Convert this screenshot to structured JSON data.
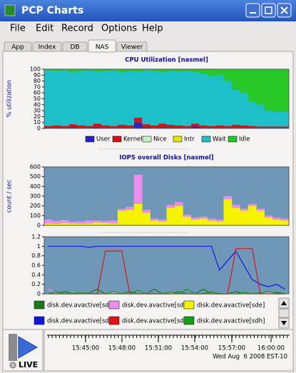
{
  "window": {
    "title": "PCP Charts"
  },
  "menu": [
    "File",
    "Edit",
    "Record",
    "Options",
    "Help"
  ],
  "tabs": [
    "App",
    "Index",
    "DB",
    "NAS",
    "Viewer"
  ],
  "active_tab": 3,
  "charts": [
    {
      "type": "bar",
      "stacked": true,
      "title": "CPU Utilization [nasmel]",
      "ylabel": "% utilization",
      "ylim": [
        0,
        100
      ],
      "yticks": [
        0,
        10,
        20,
        30,
        40,
        50,
        60,
        70,
        80,
        90,
        100
      ],
      "legend": true,
      "series": [
        {
          "name": "User",
          "color": "#2424c8",
          "values": [
            1,
            1,
            1,
            2,
            1,
            1,
            2,
            1,
            1,
            1,
            1,
            10,
            2,
            1,
            2,
            1,
            1,
            1,
            3,
            1,
            1,
            1,
            1,
            1,
            1,
            1,
            1,
            1,
            1,
            1
          ]
        },
        {
          "name": "Kernel",
          "color": "#d41414",
          "values": [
            3,
            4,
            3,
            5,
            4,
            3,
            6,
            4,
            3,
            5,
            4,
            8,
            5,
            4,
            6,
            5,
            4,
            3,
            5,
            4,
            3,
            4,
            3,
            5,
            4,
            3,
            2,
            2,
            2,
            2
          ]
        },
        {
          "name": "Nice",
          "color": "#c4f0c4",
          "values": [
            0,
            0,
            0,
            0,
            0,
            0,
            0,
            0,
            0,
            0,
            0,
            0,
            0,
            0,
            0,
            0,
            0,
            0,
            0,
            0,
            0,
            0,
            0,
            0,
            0,
            0,
            0,
            0,
            0,
            0
          ]
        },
        {
          "name": "Intr",
          "color": "#e4e400",
          "values": [
            0,
            0,
            0,
            0,
            0,
            0,
            0,
            0,
            0,
            0,
            0,
            0,
            0,
            0,
            0,
            0,
            0,
            0,
            0,
            0,
            0,
            0,
            0,
            0,
            0,
            0,
            0,
            0,
            0,
            0
          ]
        },
        {
          "name": "Wait",
          "color": "#1cc0c8",
          "values": [
            94,
            92,
            94,
            88,
            92,
            94,
            88,
            92,
            94,
            89,
            92,
            78,
            91,
            92,
            87,
            91,
            91,
            93,
            87,
            87,
            84,
            85,
            76,
            59,
            55,
            41,
            37,
            27,
            25,
            25
          ]
        },
        {
          "name": "Idle",
          "color": "#28c828",
          "values": [
            2,
            3,
            2,
            5,
            3,
            2,
            4,
            3,
            2,
            5,
            3,
            4,
            2,
            3,
            5,
            3,
            4,
            3,
            5,
            8,
            12,
            10,
            20,
            35,
            40,
            55,
            60,
            70,
            72,
            72
          ]
        }
      ]
    },
    {
      "type": "bar",
      "stacked": true,
      "title": "IOPS overall Disks [nasmel]",
      "ylabel": "count / sec",
      "ylim": [
        0,
        600
      ],
      "yticks": [
        0,
        100,
        200,
        300,
        400,
        500,
        600
      ],
      "series": [
        {
          "color": "#f4f400",
          "values": [
            20,
            15,
            25,
            20,
            15,
            20,
            30,
            25,
            20,
            150,
            160,
            220,
            130,
            50,
            40,
            180,
            200,
            90,
            60,
            70,
            50,
            40,
            270,
            180,
            150,
            200,
            150,
            80,
            60,
            50
          ]
        },
        {
          "color": "#ec8cec",
          "values": [
            40,
            30,
            30,
            20,
            25,
            30,
            20,
            20,
            30,
            20,
            30,
            300,
            30,
            20,
            20,
            30,
            40,
            20,
            20,
            20,
            20,
            20,
            30,
            30,
            20,
            20,
            20,
            20,
            20,
            20
          ]
        }
      ]
    },
    {
      "type": "line",
      "ylim": [
        0,
        1.2
      ],
      "yticks": [
        0,
        0.2,
        0.4,
        0.6,
        0.8,
        1,
        1.2
      ],
      "series": [
        {
          "name": "disk.dev.avactive[sdc]",
          "color": "#1a7a1a",
          "values": [
            0,
            0,
            0.05,
            0,
            0,
            0.02,
            0.1,
            0,
            0,
            0,
            0.05,
            0,
            0,
            0.1,
            0,
            0,
            0.05,
            0,
            0,
            0.1,
            0,
            0,
            0,
            0.05,
            0,
            0,
            0.02,
            0,
            0.03,
            0
          ]
        },
        {
          "name": "disk.dev.avactive[sdd]",
          "color": "#ec8cec",
          "values": [
            0.1,
            0,
            0,
            0,
            0.02,
            0,
            0,
            0,
            0.03,
            0,
            0,
            0,
            0,
            0,
            0,
            0.02,
            0,
            0,
            0,
            0,
            0,
            0,
            0,
            0,
            0,
            0,
            0,
            0.02,
            0,
            0
          ]
        },
        {
          "name": "disk.dev.avactive[sde]",
          "color": "#f4f400",
          "values": [
            0,
            0,
            0,
            0,
            0,
            0,
            0,
            0,
            0,
            0,
            0,
            0,
            0,
            0,
            0,
            0,
            0,
            0,
            0,
            0,
            0,
            0,
            0,
            0,
            0,
            0,
            0,
            0,
            0,
            0
          ]
        },
        {
          "name": "disk.dev.avactive[sdf]",
          "color": "#1414e8",
          "values": [
            1,
            1,
            1,
            1,
            1,
            0.98,
            1,
            1,
            1,
            1,
            1,
            1,
            1,
            1,
            1,
            1,
            1,
            1,
            1,
            1,
            1,
            0.5,
            0.7,
            0.9,
            0.6,
            0.3,
            0.2,
            0.15,
            0.2,
            0.1
          ]
        },
        {
          "name": "disk.dev.avactive[sdg]",
          "color": "#e01414",
          "values": [
            0,
            0,
            0,
            0,
            0,
            0,
            0,
            0.9,
            0.9,
            0.9,
            0,
            0,
            0,
            0,
            0,
            0,
            0,
            0,
            0,
            0,
            0,
            0,
            0,
            0.95,
            0.95,
            0.95,
            0,
            0,
            0,
            0
          ]
        },
        {
          "name": "disk.dev.avactive[sdh]",
          "color": "#14a014",
          "values": [
            0,
            0.05,
            0,
            0,
            0.03,
            0,
            0,
            0,
            0.05,
            0,
            0,
            0.08,
            0,
            0,
            0,
            0.04,
            0,
            0.1,
            0,
            0,
            0.05,
            0,
            0,
            0,
            0.03,
            0,
            0,
            0.06,
            0,
            0
          ]
        }
      ]
    }
  ],
  "time_axis": {
    "ticks": [
      "15:45:00",
      "15:48:00",
      "15:51:00",
      "15:54:00",
      "15:57:00",
      "16:00:00"
    ],
    "date": "Wed Aug  6 2008 EST-10"
  },
  "live_label": "LIVE"
}
